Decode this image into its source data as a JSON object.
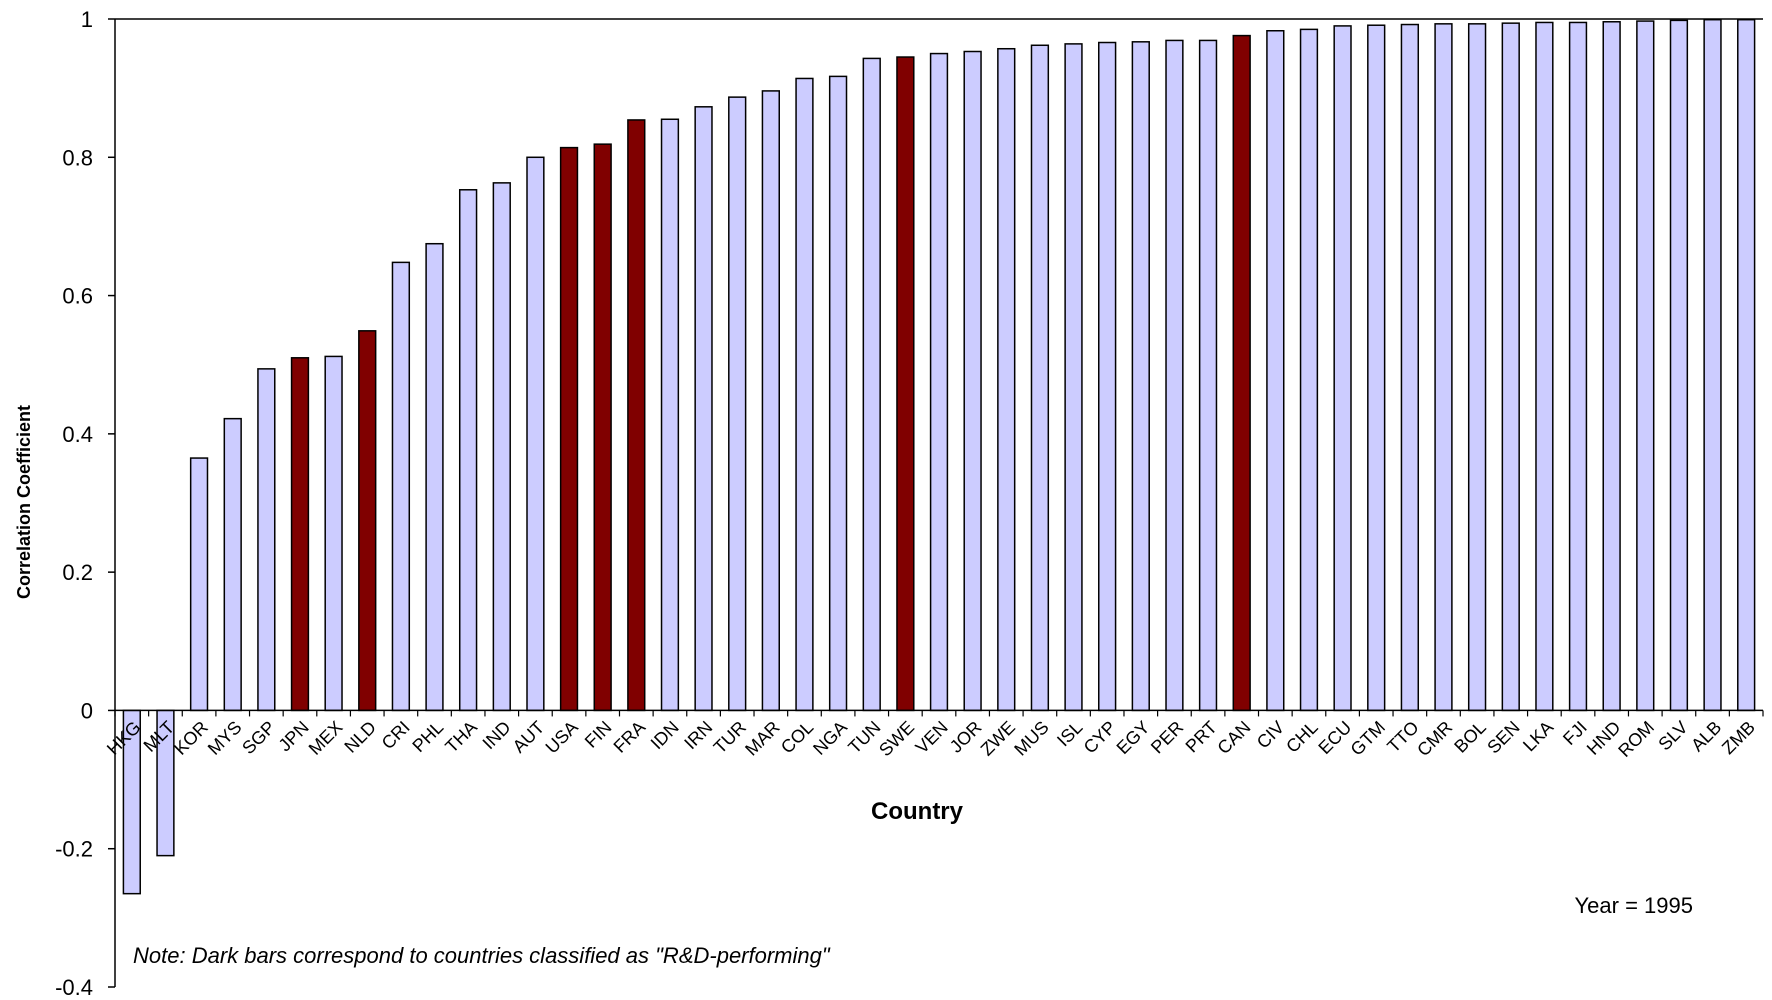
{
  "chart_data": {
    "type": "bar",
    "xlabel": "Country",
    "ylabel": "Correlation Coefficient",
    "ylim": [
      -0.4,
      1
    ],
    "yticks": [
      -0.4,
      -0.2,
      0,
      0.2,
      0.4,
      0.6,
      0.8,
      1
    ],
    "ytick_labels": [
      "-0.4",
      "-0.2",
      "0",
      "0.2",
      "0.4",
      "0.6",
      "0.8",
      "1"
    ],
    "categories": [
      "HKG",
      "MLT",
      "KOR",
      "MYS",
      "SGP",
      "JPN",
      "MEX",
      "NLD",
      "CRI",
      "PHL",
      "THA",
      "IND",
      "AUT",
      "USA",
      "FIN",
      "FRA",
      "IDN",
      "IRN",
      "TUR",
      "MAR",
      "COL",
      "NGA",
      "TUN",
      "SWE",
      "VEN",
      "JOR",
      "ZWE",
      "MUS",
      "ISL",
      "CYP",
      "EGY",
      "PER",
      "PRT",
      "CAN",
      "CIV",
      "CHL",
      "ECU",
      "GTM",
      "TTO",
      "CMR",
      "BOL",
      "SEN",
      "LKA",
      "FJI",
      "HND",
      "ROM",
      "SLV",
      "ALB",
      "ZMB"
    ],
    "values": [
      -0.265,
      -0.21,
      0.365,
      0.422,
      0.494,
      0.51,
      0.512,
      0.549,
      0.648,
      0.675,
      0.753,
      0.763,
      0.8,
      0.814,
      0.819,
      0.854,
      0.855,
      0.873,
      0.887,
      0.896,
      0.914,
      0.917,
      0.943,
      0.945,
      0.95,
      0.953,
      0.957,
      0.962,
      0.964,
      0.966,
      0.967,
      0.969,
      0.969,
      0.976,
      0.983,
      0.985,
      0.99,
      0.991,
      0.992,
      0.993,
      0.993,
      0.994,
      0.995,
      0.995,
      0.996,
      0.997,
      0.998,
      0.999,
      0.999
    ],
    "rd_performing": [
      "JPN",
      "NLD",
      "USA",
      "FIN",
      "FRA",
      "SWE",
      "CAN"
    ],
    "colors": {
      "default_bar": "#ccccff",
      "rd_bar": "#800000",
      "outline": "#000000"
    },
    "annotations": {
      "year": "Year = 1995",
      "note": "Note: Dark bars correspond to countries classified as \"R&D-performing\""
    },
    "grid": false,
    "legend": "none"
  }
}
